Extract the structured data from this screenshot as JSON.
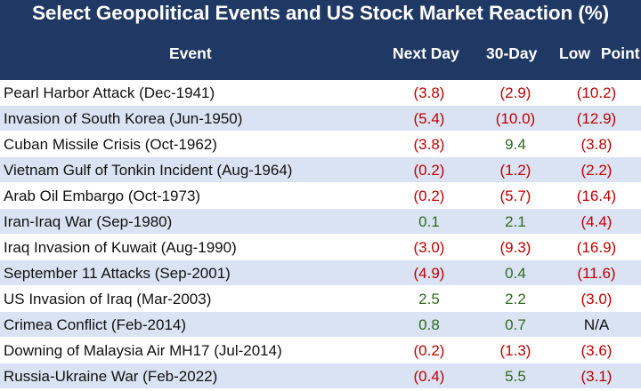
{
  "title": "Select Geopolitical Events and US Stock Market Reaction (%)",
  "columns": {
    "event": "Event",
    "next_day": "Next Day",
    "thirty_day": "30-Day",
    "low_point": "Low Point"
  },
  "colors": {
    "header_bg": "#1f3864",
    "negative": "#c00000",
    "positive": "#2e6b1e",
    "band": "#dae3f3"
  },
  "rows": [
    {
      "event": "Pearl Harbor Attack  (Dec-1941)",
      "next_day": "(3.8)",
      "thirty_day": "(2.9)",
      "low_point": "(10.2)"
    },
    {
      "event": "Invasion of South Korea  (Jun-1950)",
      "next_day": "(5.4)",
      "thirty_day": "(10.0)",
      "low_point": "(12.9)"
    },
    {
      "event": "Cuban Missile Crisis (Oct-1962)",
      "next_day": "(3.8)",
      "thirty_day": "9.4",
      "low_point": "(3.8)"
    },
    {
      "event": "Vietnam Gulf of Tonkin Incident (Aug-1964)",
      "next_day": "(0.2)",
      "thirty_day": "(1.2)",
      "low_point": "(2.2)"
    },
    {
      "event": "Arab Oil Embargo (Oct-1973)",
      "next_day": "(0.2)",
      "thirty_day": "(5.7)",
      "low_point": "(16.4)"
    },
    {
      "event": "Iran-Iraq War (Sep-1980)",
      "next_day": "0.1",
      "thirty_day": "2.1",
      "low_point": "(4.4)"
    },
    {
      "event": "Iraq Invasion of Kuwait (Aug-1990)",
      "next_day": "(3.0)",
      "thirty_day": "(9.3)",
      "low_point": "(16.9)"
    },
    {
      "event": "September 11 Attacks (Sep-2001)",
      "next_day": "(4.9)",
      "thirty_day": "0.4",
      "low_point": "(11.6)"
    },
    {
      "event": "US Invasion of Iraq (Mar-2003)",
      "next_day": "2.5",
      "thirty_day": "2.2",
      "low_point": "(3.0)"
    },
    {
      "event": "Crimea Conflict (Feb-2014)",
      "next_day": "0.8",
      "thirty_day": "0.7",
      "low_point": "N/A"
    },
    {
      "event": "Downing of Malaysia Air MH17 (Jul-2014)",
      "next_day": "(0.2)",
      "thirty_day": "(1.3)",
      "low_point": "(3.6)"
    },
    {
      "event": "Russia-Ukraine War (Feb-2022)",
      "next_day": "(0.4)",
      "thirty_day": "5.5",
      "low_point": "(3.1)"
    }
  ]
}
